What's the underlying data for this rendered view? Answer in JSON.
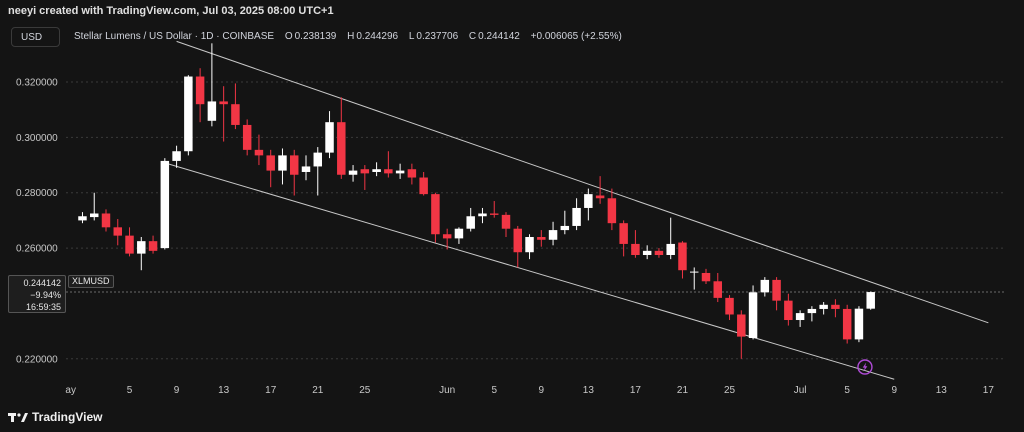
{
  "header": {
    "attribution": "neeyi created with TradingView.com, Jul 03, 2025 08:00 UTC+1",
    "currency_button": "USD"
  },
  "legend": {
    "title": "Stellar Lumens / US Dollar · 1D · COINBASE",
    "o_label": "O",
    "o_value": "0.238139",
    "h_label": "H",
    "h_value": "0.244296",
    "l_label": "L",
    "l_value": "0.237706",
    "c_label": "C",
    "c_value": "0.244142",
    "change": "+0.006065 (+2.55%)"
  },
  "price_label": {
    "price": "0.244142",
    "change_pct": "−9.94%",
    "countdown": "16:59:35",
    "symbol": "XLMUSD"
  },
  "footer": {
    "brand": "TradingView"
  },
  "colors": {
    "background": "#141414",
    "up": "#ffffff",
    "down": "#f23645",
    "channel": "#c8c8c8",
    "grid": "#3a3a3a",
    "event_icon": "#b04bd8"
  },
  "icons": {
    "event": "lightning-icon",
    "brand": "tradingview-logo-icon"
  },
  "chart_data": {
    "type": "candlestick",
    "y_ticks": [
      "0.320000",
      "0.300000",
      "0.280000",
      "0.260000",
      "0.220000"
    ],
    "y_tick_values": [
      0.32,
      0.3,
      0.28,
      0.26,
      0.22
    ],
    "ylim": [
      0.2116,
      0.3352
    ],
    "x_ticks": [
      {
        "label": "ay",
        "day": -1
      },
      {
        "label": "5",
        "day": 4
      },
      {
        "label": "9",
        "day": 8
      },
      {
        "label": "13",
        "day": 12
      },
      {
        "label": "17",
        "day": 16
      },
      {
        "label": "21",
        "day": 20
      },
      {
        "label": "25",
        "day": 24
      },
      {
        "label": "Jun",
        "day": 31
      },
      {
        "label": "5",
        "day": 35
      },
      {
        "label": "9",
        "day": 39
      },
      {
        "label": "13",
        "day": 43
      },
      {
        "label": "17",
        "day": 47
      },
      {
        "label": "21",
        "day": 51
      },
      {
        "label": "25",
        "day": 55
      },
      {
        "label": "Jul",
        "day": 61
      },
      {
        "label": "5",
        "day": 65
      },
      {
        "label": "9",
        "day": 69
      },
      {
        "label": "13",
        "day": 73
      },
      {
        "label": "17",
        "day": 77
      }
    ],
    "x_domain": [
      -1.4,
      78.5
    ],
    "candles": [
      {
        "day": 0,
        "o": 0.27,
        "h": 0.273,
        "l": 0.269,
        "c": 0.2715
      },
      {
        "day": 1,
        "o": 0.2712,
        "h": 0.28,
        "l": 0.27,
        "c": 0.2725
      },
      {
        "day": 2,
        "o": 0.2725,
        "h": 0.274,
        "l": 0.266,
        "c": 0.2675
      },
      {
        "day": 3,
        "o": 0.2675,
        "h": 0.2705,
        "l": 0.261,
        "c": 0.2645
      },
      {
        "day": 4,
        "o": 0.2645,
        "h": 0.2675,
        "l": 0.257,
        "c": 0.258
      },
      {
        "day": 5,
        "o": 0.258,
        "h": 0.264,
        "l": 0.252,
        "c": 0.2625
      },
      {
        "day": 6,
        "o": 0.2625,
        "h": 0.2645,
        "l": 0.258,
        "c": 0.259
      },
      {
        "day": 7,
        "o": 0.26,
        "h": 0.2925,
        "l": 0.2595,
        "c": 0.2915
      },
      {
        "day": 8,
        "o": 0.2915,
        "h": 0.297,
        "l": 0.289,
        "c": 0.295
      },
      {
        "day": 9,
        "o": 0.295,
        "h": 0.3225,
        "l": 0.2935,
        "c": 0.322
      },
      {
        "day": 10,
        "o": 0.322,
        "h": 0.325,
        "l": 0.3055,
        "c": 0.312
      },
      {
        "day": 11,
        "o": 0.306,
        "h": 0.334,
        "l": 0.304,
        "c": 0.313
      },
      {
        "day": 12,
        "o": 0.313,
        "h": 0.3185,
        "l": 0.2985,
        "c": 0.312
      },
      {
        "day": 13,
        "o": 0.312,
        "h": 0.3195,
        "l": 0.303,
        "c": 0.3045
      },
      {
        "day": 14,
        "o": 0.3045,
        "h": 0.3065,
        "l": 0.2935,
        "c": 0.2955
      },
      {
        "day": 15,
        "o": 0.2955,
        "h": 0.301,
        "l": 0.29,
        "c": 0.2935
      },
      {
        "day": 16,
        "o": 0.2935,
        "h": 0.2955,
        "l": 0.282,
        "c": 0.288
      },
      {
        "day": 17,
        "o": 0.288,
        "h": 0.296,
        "l": 0.283,
        "c": 0.2935
      },
      {
        "day": 18,
        "o": 0.2935,
        "h": 0.2955,
        "l": 0.279,
        "c": 0.2865
      },
      {
        "day": 19,
        "o": 0.2875,
        "h": 0.2935,
        "l": 0.2845,
        "c": 0.2895
      },
      {
        "day": 20,
        "o": 0.2895,
        "h": 0.2965,
        "l": 0.279,
        "c": 0.2945
      },
      {
        "day": 21,
        "o": 0.2945,
        "h": 0.3095,
        "l": 0.2925,
        "c": 0.3055
      },
      {
        "day": 22,
        "o": 0.3055,
        "h": 0.3145,
        "l": 0.285,
        "c": 0.2865
      },
      {
        "day": 23,
        "o": 0.2865,
        "h": 0.29,
        "l": 0.284,
        "c": 0.288
      },
      {
        "day": 24,
        "o": 0.2885,
        "h": 0.29,
        "l": 0.281,
        "c": 0.287
      },
      {
        "day": 25,
        "o": 0.2875,
        "h": 0.291,
        "l": 0.286,
        "c": 0.2885
      },
      {
        "day": 26,
        "o": 0.2885,
        "h": 0.295,
        "l": 0.2855,
        "c": 0.287
      },
      {
        "day": 27,
        "o": 0.287,
        "h": 0.2905,
        "l": 0.285,
        "c": 0.288
      },
      {
        "day": 28,
        "o": 0.2885,
        "h": 0.2905,
        "l": 0.283,
        "c": 0.2855
      },
      {
        "day": 29,
        "o": 0.2855,
        "h": 0.2875,
        "l": 0.279,
        "c": 0.2795
      },
      {
        "day": 30,
        "o": 0.2795,
        "h": 0.28,
        "l": 0.262,
        "c": 0.265
      },
      {
        "day": 31,
        "o": 0.265,
        "h": 0.267,
        "l": 0.2595,
        "c": 0.2635
      },
      {
        "day": 32,
        "o": 0.2635,
        "h": 0.2675,
        "l": 0.2615,
        "c": 0.267
      },
      {
        "day": 33,
        "o": 0.267,
        "h": 0.2745,
        "l": 0.266,
        "c": 0.2715
      },
      {
        "day": 34,
        "o": 0.2715,
        "h": 0.2745,
        "l": 0.269,
        "c": 0.2725
      },
      {
        "day": 35,
        "o": 0.2725,
        "h": 0.277,
        "l": 0.271,
        "c": 0.272
      },
      {
        "day": 36,
        "o": 0.272,
        "h": 0.273,
        "l": 0.264,
        "c": 0.267
      },
      {
        "day": 37,
        "o": 0.267,
        "h": 0.268,
        "l": 0.253,
        "c": 0.2585
      },
      {
        "day": 38,
        "o": 0.2585,
        "h": 0.265,
        "l": 0.256,
        "c": 0.264
      },
      {
        "day": 39,
        "o": 0.264,
        "h": 0.2665,
        "l": 0.2605,
        "c": 0.263
      },
      {
        "day": 40,
        "o": 0.263,
        "h": 0.2695,
        "l": 0.261,
        "c": 0.2665
      },
      {
        "day": 41,
        "o": 0.2665,
        "h": 0.2735,
        "l": 0.265,
        "c": 0.268
      },
      {
        "day": 42,
        "o": 0.268,
        "h": 0.278,
        "l": 0.2665,
        "c": 0.2745
      },
      {
        "day": 43,
        "o": 0.2745,
        "h": 0.2815,
        "l": 0.27,
        "c": 0.2795
      },
      {
        "day": 44,
        "o": 0.279,
        "h": 0.286,
        "l": 0.276,
        "c": 0.278
      },
      {
        "day": 45,
        "o": 0.278,
        "h": 0.2815,
        "l": 0.2665,
        "c": 0.269
      },
      {
        "day": 46,
        "o": 0.269,
        "h": 0.27,
        "l": 0.257,
        "c": 0.2615
      },
      {
        "day": 47,
        "o": 0.2615,
        "h": 0.2665,
        "l": 0.2565,
        "c": 0.2575
      },
      {
        "day": 48,
        "o": 0.2575,
        "h": 0.261,
        "l": 0.256,
        "c": 0.259
      },
      {
        "day": 49,
        "o": 0.259,
        "h": 0.26,
        "l": 0.2565,
        "c": 0.2575
      },
      {
        "day": 50,
        "o": 0.2575,
        "h": 0.271,
        "l": 0.256,
        "c": 0.2615
      },
      {
        "day": 51,
        "o": 0.262,
        "h": 0.2625,
        "l": 0.249,
        "c": 0.252
      },
      {
        "day": 52,
        "o": 0.2515,
        "h": 0.253,
        "l": 0.245,
        "c": 0.2515
      },
      {
        "day": 53,
        "o": 0.251,
        "h": 0.2525,
        "l": 0.247,
        "c": 0.248
      },
      {
        "day": 54,
        "o": 0.248,
        "h": 0.251,
        "l": 0.2405,
        "c": 0.242
      },
      {
        "day": 55,
        "o": 0.242,
        "h": 0.243,
        "l": 0.234,
        "c": 0.236
      },
      {
        "day": 56,
        "o": 0.236,
        "h": 0.2375,
        "l": 0.22,
        "c": 0.228
      },
      {
        "day": 57,
        "o": 0.2275,
        "h": 0.2465,
        "l": 0.227,
        "c": 0.244
      },
      {
        "day": 58,
        "o": 0.244,
        "h": 0.2495,
        "l": 0.2425,
        "c": 0.2485
      },
      {
        "day": 59,
        "o": 0.2485,
        "h": 0.2495,
        "l": 0.2375,
        "c": 0.241
      },
      {
        "day": 60,
        "o": 0.241,
        "h": 0.2435,
        "l": 0.232,
        "c": 0.234
      },
      {
        "day": 61,
        "o": 0.234,
        "h": 0.2375,
        "l": 0.2315,
        "c": 0.2365
      },
      {
        "day": 62,
        "o": 0.2365,
        "h": 0.239,
        "l": 0.2335,
        "c": 0.238
      },
      {
        "day": 63,
        "o": 0.238,
        "h": 0.2405,
        "l": 0.236,
        "c": 0.2395
      },
      {
        "day": 64,
        "o": 0.2395,
        "h": 0.2415,
        "l": 0.235,
        "c": 0.238
      },
      {
        "day": 65,
        "o": 0.238,
        "h": 0.2395,
        "l": 0.2255,
        "c": 0.227
      },
      {
        "day": 66,
        "o": 0.227,
        "h": 0.239,
        "l": 0.226,
        "c": 0.2381
      },
      {
        "day": 67,
        "o": 0.2381,
        "h": 0.2443,
        "l": 0.2377,
        "c": 0.2441
      }
    ],
    "channel": {
      "upper": [
        {
          "day": 8,
          "price": 0.3347
        },
        {
          "day": 77,
          "price": 0.233
        }
      ],
      "lower": [
        {
          "day": 7,
          "price": 0.2908
        },
        {
          "day": 69,
          "price": 0.2126
        }
      ]
    },
    "last_price": 0.244142,
    "event_marker_day": 66
  }
}
